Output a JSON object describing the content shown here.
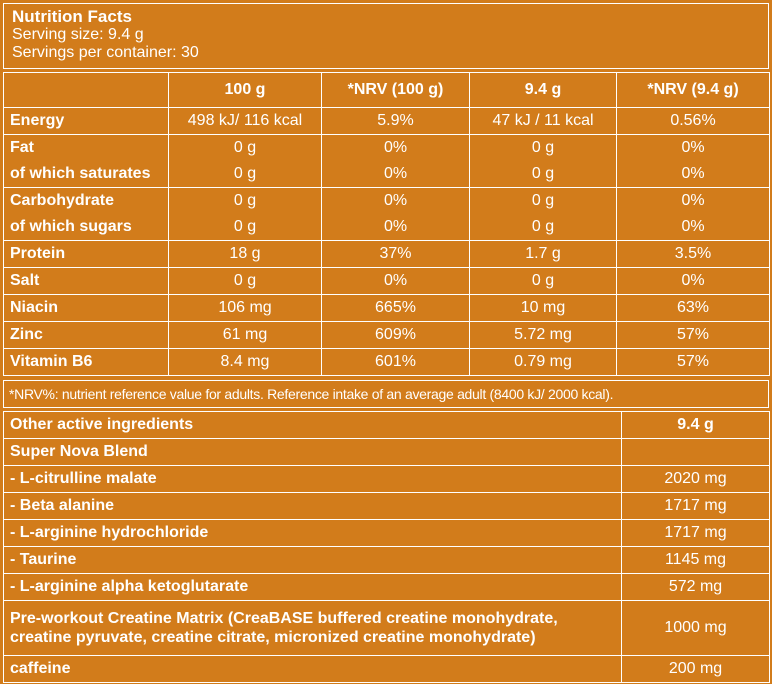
{
  "header": {
    "title": "Nutrition Facts",
    "serving_size": "Serving size: 9.4 g",
    "servings_per_container": "Servings per container: 30"
  },
  "nutrition": {
    "columns": [
      "100 g",
      "*NRV (100 g)",
      "9.4 g",
      "*NRV (9.4 g)"
    ],
    "rows": {
      "energy": {
        "label": "Energy",
        "v100": "498 kJ/ 116 kcal",
        "nrv100": "5.9%",
        "v94": "47 kJ / 11 kcal",
        "nrv94": "0.56%"
      },
      "fat": {
        "label": "Fat",
        "v100": "0 g",
        "nrv100": "0%",
        "v94": "0 g",
        "nrv94": "0%"
      },
      "saturates": {
        "label": "of which saturates",
        "v100": "0 g",
        "nrv100": "0%",
        "v94": "0 g",
        "nrv94": "0%"
      },
      "carbohydrate": {
        "label": "Carbohydrate",
        "v100": "0 g",
        "nrv100": "0%",
        "v94": "0 g",
        "nrv94": "0%"
      },
      "sugars": {
        "label": "of which sugars",
        "v100": "0 g",
        "nrv100": "0%",
        "v94": "0 g",
        "nrv94": "0%"
      },
      "protein": {
        "label": "Protein",
        "v100": "18 g",
        "nrv100": "37%",
        "v94": "1.7 g",
        "nrv94": "3.5%"
      },
      "salt": {
        "label": "Salt",
        "v100": "0 g",
        "nrv100": "0%",
        "v94": "0 g",
        "nrv94": "0%"
      },
      "niacin": {
        "label": "Niacin",
        "v100": "106 mg",
        "nrv100": "665%",
        "v94": "10 mg",
        "nrv94": "63%"
      },
      "zinc": {
        "label": "Zinc",
        "v100": "61 mg",
        "nrv100": "609%",
        "v94": "5.72 mg",
        "nrv94": "57%"
      },
      "b6": {
        "label": "Vitamin B6",
        "v100": "8.4 mg",
        "nrv100": "601%",
        "v94": "0.79 mg",
        "nrv94": "57%"
      }
    }
  },
  "footnote": "*NRV%: nutrient reference value for adults. Reference intake of an average adult (8400 kJ/ 2000 kcal).",
  "active": {
    "header_label": "Other active ingredients",
    "header_value": "9.4 g",
    "blend": "Super Nova Blend",
    "items": [
      {
        "name": "- L-citrulline malate",
        "value": "2020 mg"
      },
      {
        "name": "- Beta alanine",
        "value": "1717 mg"
      },
      {
        "name": "- L-arginine hydrochloride",
        "value": "1717 mg"
      },
      {
        "name": "- Taurine",
        "value": "1145 mg"
      },
      {
        "name": "- L-arginine alpha ketoglutarate",
        "value": "572 mg"
      }
    ],
    "matrix_line1": "Pre-workout Creatine Matrix (CreaBASE buffered creatine monohydrate,",
    "matrix_line2": "creatine pyruvate, creatine citrate, micronized creatine monohydrate)",
    "matrix_value": "1000 mg",
    "caffeine": {
      "name": "caffeine",
      "value": "200 mg"
    }
  }
}
